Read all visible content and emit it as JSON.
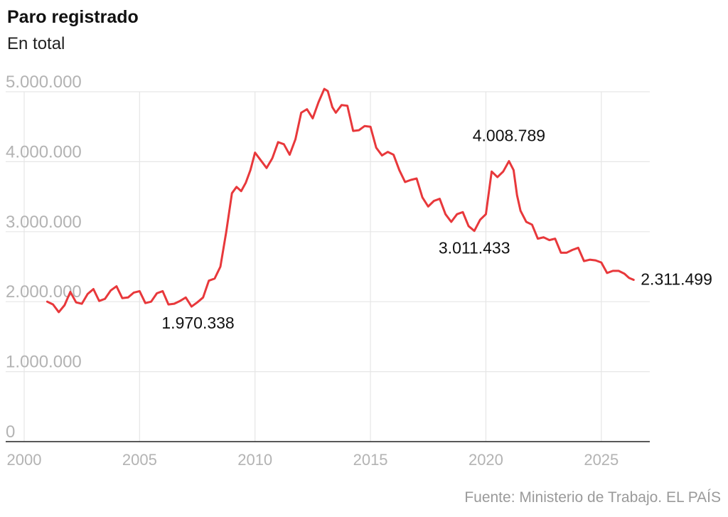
{
  "header": {
    "title": "Paro registrado",
    "subtitle": "En total"
  },
  "footer": {
    "source": "Fuente: Ministerio de Trabajo. EL PAÍS"
  },
  "colors": {
    "line": "#e8383b",
    "grid": "#e6e6e6",
    "axis": "#222222",
    "tick_label": "#b3b3b3",
    "annotation": "#111111"
  },
  "chart_data": {
    "type": "line",
    "title": "Paro registrado",
    "subtitle": "En total",
    "xlabel": "",
    "ylabel": "",
    "xlim": [
      1999.2,
      2027.1
    ],
    "ylim": [
      0,
      5000000
    ],
    "x_ticks": [
      2000,
      2005,
      2010,
      2015,
      2020,
      2025
    ],
    "x_tick_labels": [
      "2000",
      "2005",
      "2010",
      "2015",
      "2020",
      "2025"
    ],
    "y_ticks": [
      0,
      1000000,
      2000000,
      3000000,
      4000000,
      5000000
    ],
    "y_tick_labels": [
      "0",
      "1.000.000",
      "2.000.000",
      "3.000.000",
      "4.000.000",
      "5.000.000"
    ],
    "grid": true,
    "legend": "none",
    "series": [
      {
        "x": [
          2001.0,
          2001.25,
          2001.5,
          2001.75,
          2002.0,
          2002.25,
          2002.5,
          2002.75,
          2003.0,
          2003.25,
          2003.5,
          2003.75,
          2004.0,
          2004.25,
          2004.5,
          2004.75,
          2005.0,
          2005.25,
          2005.5,
          2005.75,
          2006.0,
          2006.25,
          2006.5,
          2006.75,
          2007.0,
          2007.25,
          2007.5,
          2007.75,
          2008.0,
          2008.25,
          2008.5,
          2008.75,
          2009.0,
          2009.2,
          2009.4,
          2009.6,
          2009.8,
          2010.0,
          2010.25,
          2010.5,
          2010.75,
          2011.0,
          2011.25,
          2011.5,
          2011.75,
          2012.0,
          2012.25,
          2012.5,
          2012.75,
          2013.0,
          2013.15,
          2013.35,
          2013.5,
          2013.75,
          2014.0,
          2014.25,
          2014.5,
          2014.75,
          2015.0,
          2015.25,
          2015.5,
          2015.75,
          2016.0,
          2016.25,
          2016.5,
          2016.75,
          2017.0,
          2017.25,
          2017.5,
          2017.75,
          2018.0,
          2018.25,
          2018.5,
          2018.75,
          2019.0,
          2019.25,
          2019.5,
          2019.75,
          2020.0,
          2020.25,
          2020.5,
          2020.75,
          2021.0,
          2021.2,
          2021.35,
          2021.5,
          2021.75,
          2022.0,
          2022.25,
          2022.5,
          2022.75,
          2023.0,
          2023.25,
          2023.5,
          2023.75,
          2024.0,
          2024.25,
          2024.5,
          2024.75,
          2025.0,
          2025.25,
          2025.5,
          2025.75,
          2026.0,
          2026.2,
          2026.4
        ],
        "values": [
          2000000,
          1960000,
          1850000,
          1950000,
          2140000,
          1990000,
          1970000,
          2110000,
          2180000,
          2010000,
          2040000,
          2160000,
          2220000,
          2050000,
          2060000,
          2130000,
          2150000,
          1980000,
          2000000,
          2120000,
          2150000,
          1960000,
          1970000,
          2010000,
          2060000,
          1930000,
          1990000,
          2060000,
          2300000,
          2330000,
          2500000,
          2990000,
          3550000,
          3640000,
          3580000,
          3700000,
          3880000,
          4130000,
          4020000,
          3910000,
          4050000,
          4280000,
          4250000,
          4100000,
          4320000,
          4700000,
          4750000,
          4620000,
          4850000,
          5040000,
          5010000,
          4780000,
          4700000,
          4810000,
          4800000,
          4440000,
          4450000,
          4510000,
          4500000,
          4200000,
          4090000,
          4140000,
          4100000,
          3880000,
          3710000,
          3740000,
          3760000,
          3490000,
          3360000,
          3440000,
          3470000,
          3250000,
          3140000,
          3250000,
          3280000,
          3080000,
          3011433,
          3170000,
          3250000,
          3860000,
          3780000,
          3860000,
          4008789,
          3880000,
          3520000,
          3300000,
          3140000,
          3100000,
          2900000,
          2920000,
          2880000,
          2900000,
          2700000,
          2700000,
          2740000,
          2770000,
          2580000,
          2600000,
          2590000,
          2560000,
          2410000,
          2440000,
          2440000,
          2400000,
          2340000,
          2311499
        ]
      }
    ],
    "annotations": [
      {
        "text": "1.970.338",
        "x": 2006.3,
        "y": 1970338
      },
      {
        "text": "4.008.789",
        "x": 2021.0,
        "y": 4008789
      },
      {
        "text": "3.011.433",
        "x": 2019.5,
        "y": 3011433
      },
      {
        "text": "2.311.499",
        "x": 2026.4,
        "y": 2311499
      }
    ]
  }
}
